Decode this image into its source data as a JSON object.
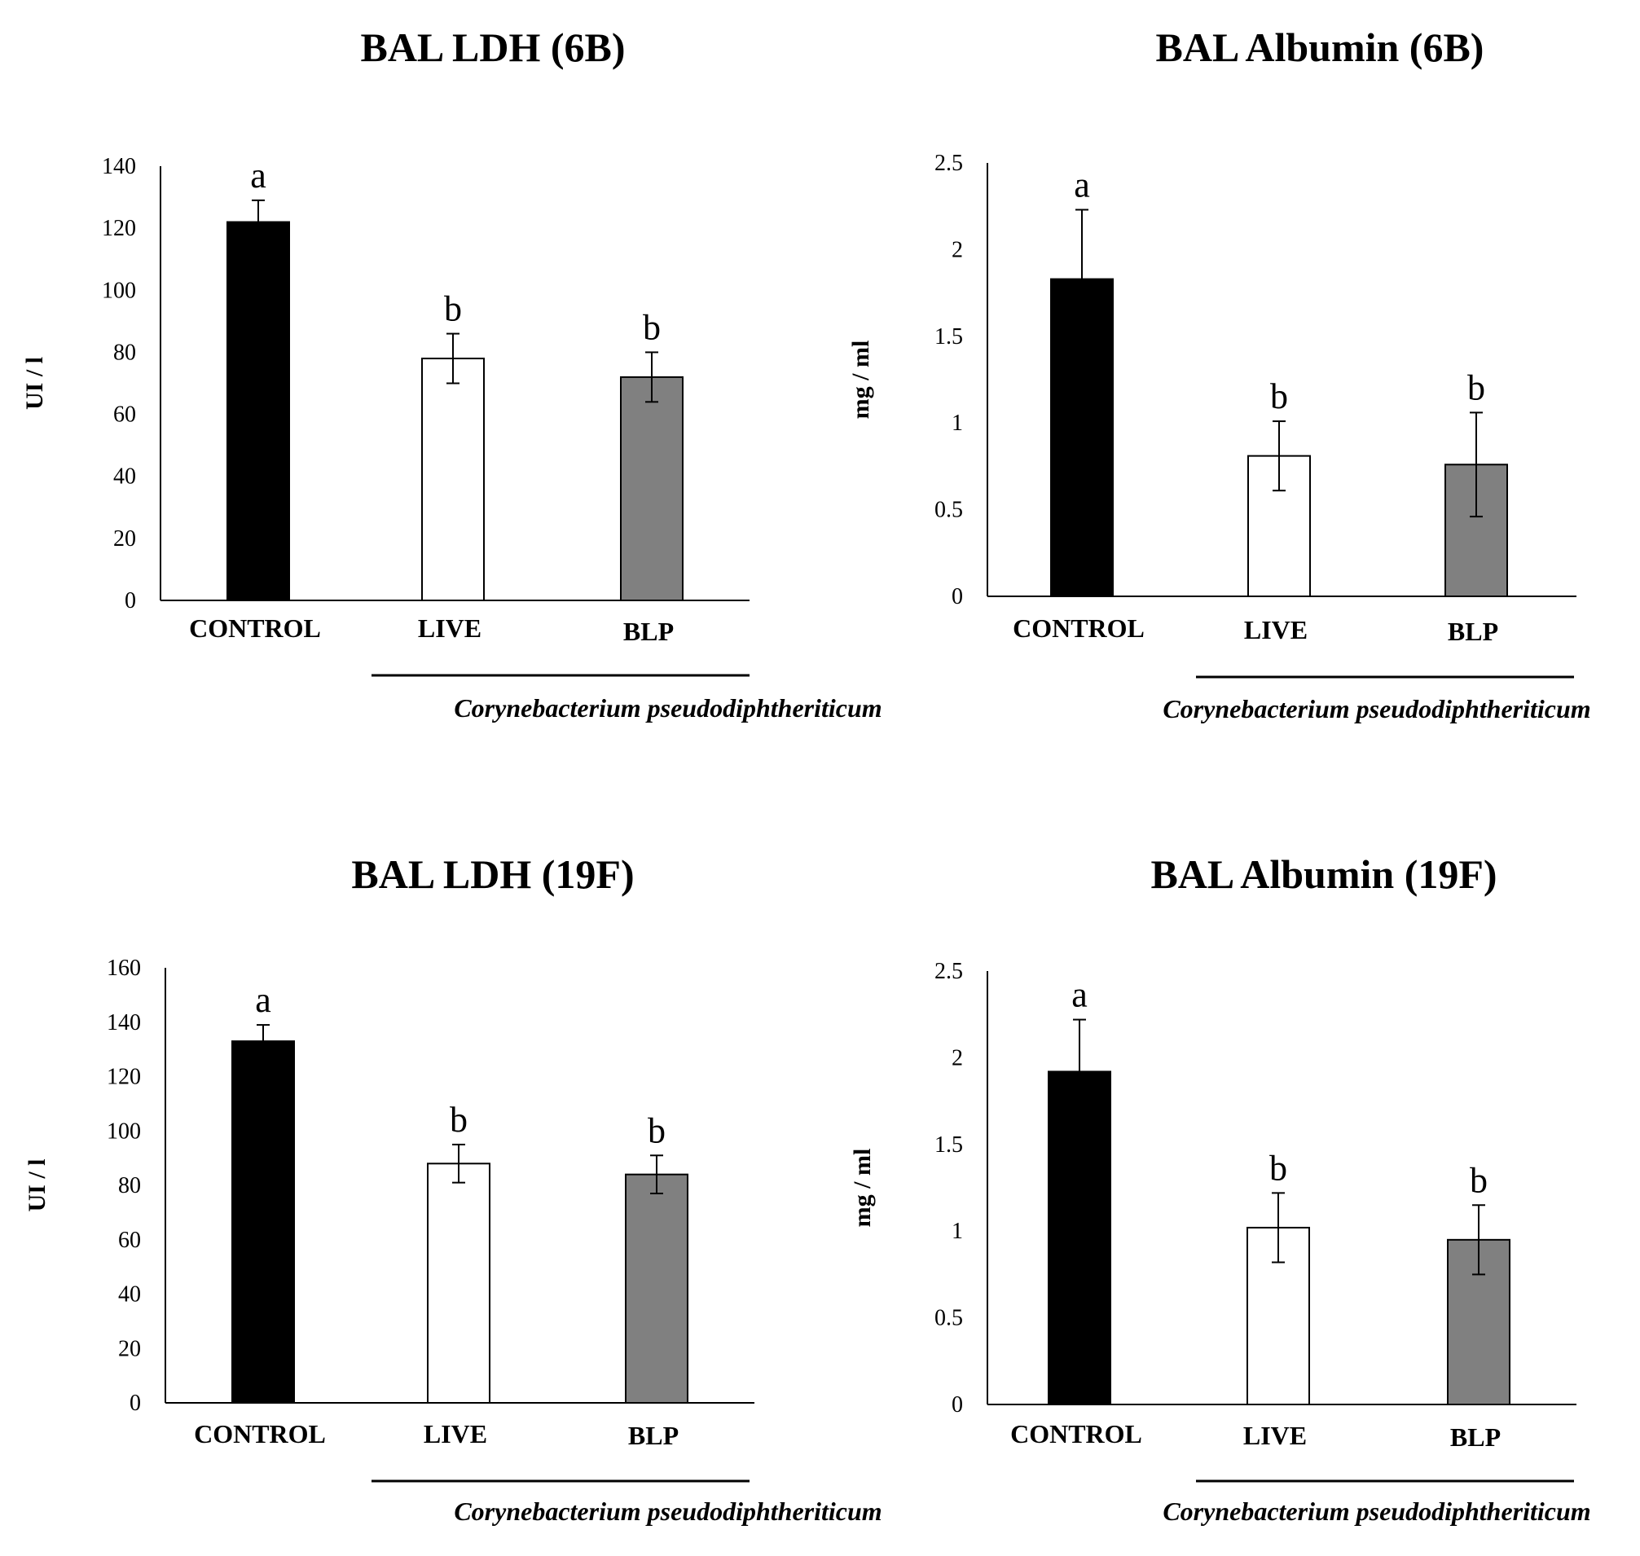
{
  "chart_data": [
    {
      "type": "bar",
      "title": "BAL LDH (6B)",
      "ylabel": "UI / l",
      "xlabel": "",
      "ylim": [
        0,
        140
      ],
      "yticks": [
        "0",
        "20",
        "40",
        "60",
        "80",
        "100",
        "120",
        "140"
      ],
      "categories": [
        "CONTROL",
        "LIVE",
        "BLP"
      ],
      "values": [
        122,
        78,
        72
      ],
      "errors": [
        7,
        8,
        8
      ],
      "significance": [
        "a",
        "b",
        "b"
      ],
      "colors": [
        "#000000",
        "#ffffff",
        "#808080"
      ],
      "group_label": "Corynebacterium pseudodiphtheriticum"
    },
    {
      "type": "bar",
      "title": "BAL Albumin  (6B)",
      "ylabel": "mg / ml",
      "xlabel": "",
      "ylim": [
        0,
        2.5
      ],
      "yticks": [
        "0",
        "0.5",
        "1",
        "1.5",
        "2",
        "2.5"
      ],
      "categories": [
        "CONTROL",
        "LIVE",
        "BLP"
      ],
      "values": [
        1.83,
        0.81,
        0.76
      ],
      "errors": [
        0.4,
        0.2,
        0.3
      ],
      "significance": [
        "a",
        "b",
        "b"
      ],
      "colors": [
        "#000000",
        "#ffffff",
        "#808080"
      ],
      "group_label": "Corynebacterium pseudodiphtheriticum"
    },
    {
      "type": "bar",
      "title": "BAL LDH (19F)",
      "ylabel": "UI / l",
      "xlabel": "",
      "ylim": [
        0,
        160
      ],
      "yticks": [
        "0",
        "20",
        "40",
        "60",
        "80",
        "100",
        "120",
        "140",
        "160"
      ],
      "categories": [
        "CONTROL",
        "LIVE",
        "BLP"
      ],
      "values": [
        133,
        88,
        84
      ],
      "errors": [
        6,
        7,
        7
      ],
      "significance": [
        "a",
        "b",
        "b"
      ],
      "colors": [
        "#000000",
        "#ffffff",
        "#808080"
      ],
      "group_label": "Corynebacterium pseudodiphtheriticum"
    },
    {
      "type": "bar",
      "title": "BAL Albumin  (19F)",
      "ylabel": "mg / ml",
      "xlabel": "",
      "ylim": [
        0,
        2.5
      ],
      "yticks": [
        "0",
        "0.5",
        "1",
        "1.5",
        "2",
        "2.5"
      ],
      "categories": [
        "CONTROL",
        "LIVE",
        "BLP"
      ],
      "values": [
        1.92,
        1.02,
        0.95
      ],
      "errors": [
        0.3,
        0.2,
        0.2
      ],
      "significance": [
        "a",
        "b",
        "b"
      ],
      "colors": [
        "#000000",
        "#ffffff",
        "#808080"
      ],
      "group_label": "Corynebacterium pseudodiphtheriticum"
    }
  ]
}
